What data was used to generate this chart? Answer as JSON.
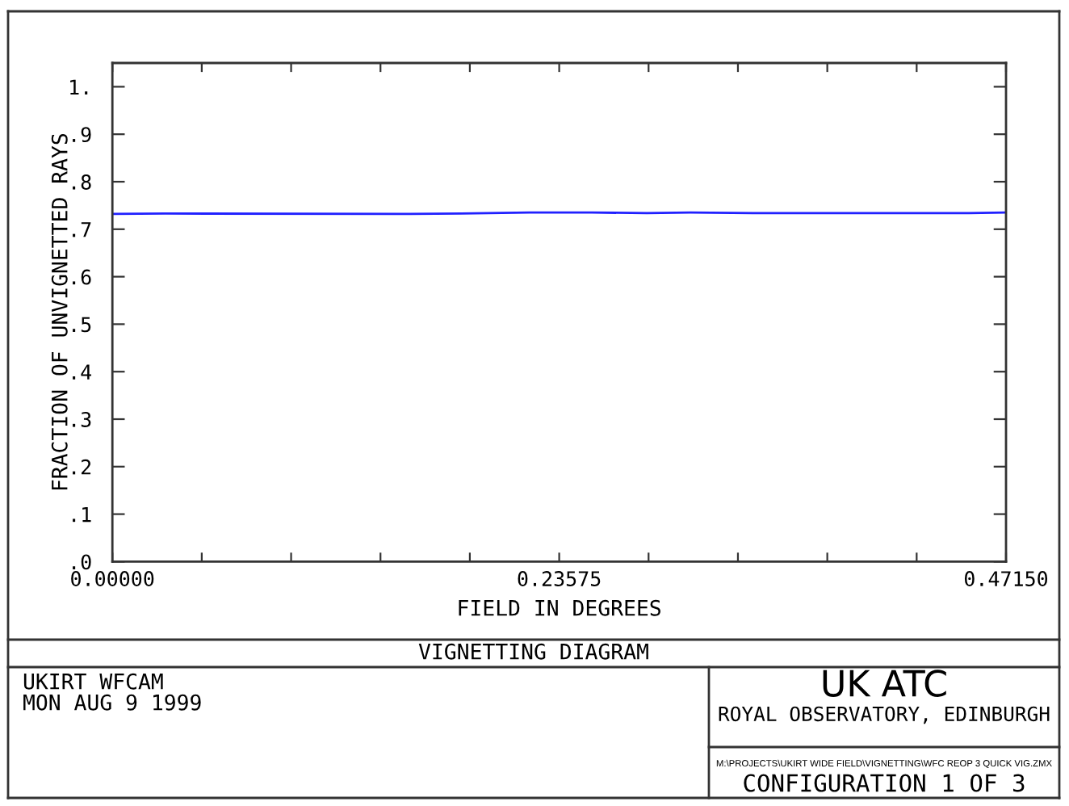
{
  "chart_data": {
    "type": "line",
    "title": "VIGNETTING DIAGRAM",
    "xlabel": "FIELD IN DEGREES",
    "ylabel": "FRACTION OF UNVIGNETTED RAYS",
    "x": [
      0,
      0.028,
      0.152,
      0.184,
      0.22,
      0.253,
      0.282,
      0.305,
      0.338,
      0.377,
      0.452,
      0.4715
    ],
    "series": [
      {
        "color": "#2020ff",
        "values": [
          0.732,
          0.733,
          0.732,
          0.733,
          0.735,
          0.735,
          0.734,
          0.735,
          0.734,
          0.734,
          0.734,
          0.735
        ]
      }
    ],
    "xlim": [
      0,
      0.4715
    ],
    "xticks": [
      {
        "value": 0,
        "label": "0.00000"
      },
      {
        "value": 0.04715,
        "label": null
      },
      {
        "value": 0.0943,
        "label": null
      },
      {
        "value": 0.14145,
        "label": null
      },
      {
        "value": 0.1886,
        "label": null
      },
      {
        "value": 0.23575,
        "label": "0.23575"
      },
      {
        "value": 0.2829,
        "label": null
      },
      {
        "value": 0.33005,
        "label": null
      },
      {
        "value": 0.3772,
        "label": null
      },
      {
        "value": 0.42435,
        "label": null
      },
      {
        "value": 0.4715,
        "label": "0.47150"
      }
    ],
    "ylim": [
      0,
      1.05
    ],
    "yticks": [
      {
        "value": 0,
        "label": ".0"
      },
      {
        "value": 0.1,
        "label": ".1"
      },
      {
        "value": 0.2,
        "label": ".2"
      },
      {
        "value": 0.3,
        "label": ".3"
      },
      {
        "value": 0.4,
        "label": ".4"
      },
      {
        "value": 0.5,
        "label": ".5"
      },
      {
        "value": 0.6,
        "label": ".6"
      },
      {
        "value": 0.7,
        "label": ".7"
      },
      {
        "value": 0.8,
        "label": ".8"
      },
      {
        "value": 0.9,
        "label": ".9"
      },
      {
        "value": 1,
        "label": "1."
      }
    ],
    "annotations": [
      "UKIRT WFCAM",
      "MON AUG 9 1999",
      "UK ATC",
      "ROYAL OBSERVATORY, EDINBURGH",
      "M:\\PROJECTS\\UKIRT WIDE FIELD\\VIGNETTING\\WFC REOP 3 QUICK VIG.ZMX",
      "CONFIGURATION 1 OF 3"
    ]
  }
}
